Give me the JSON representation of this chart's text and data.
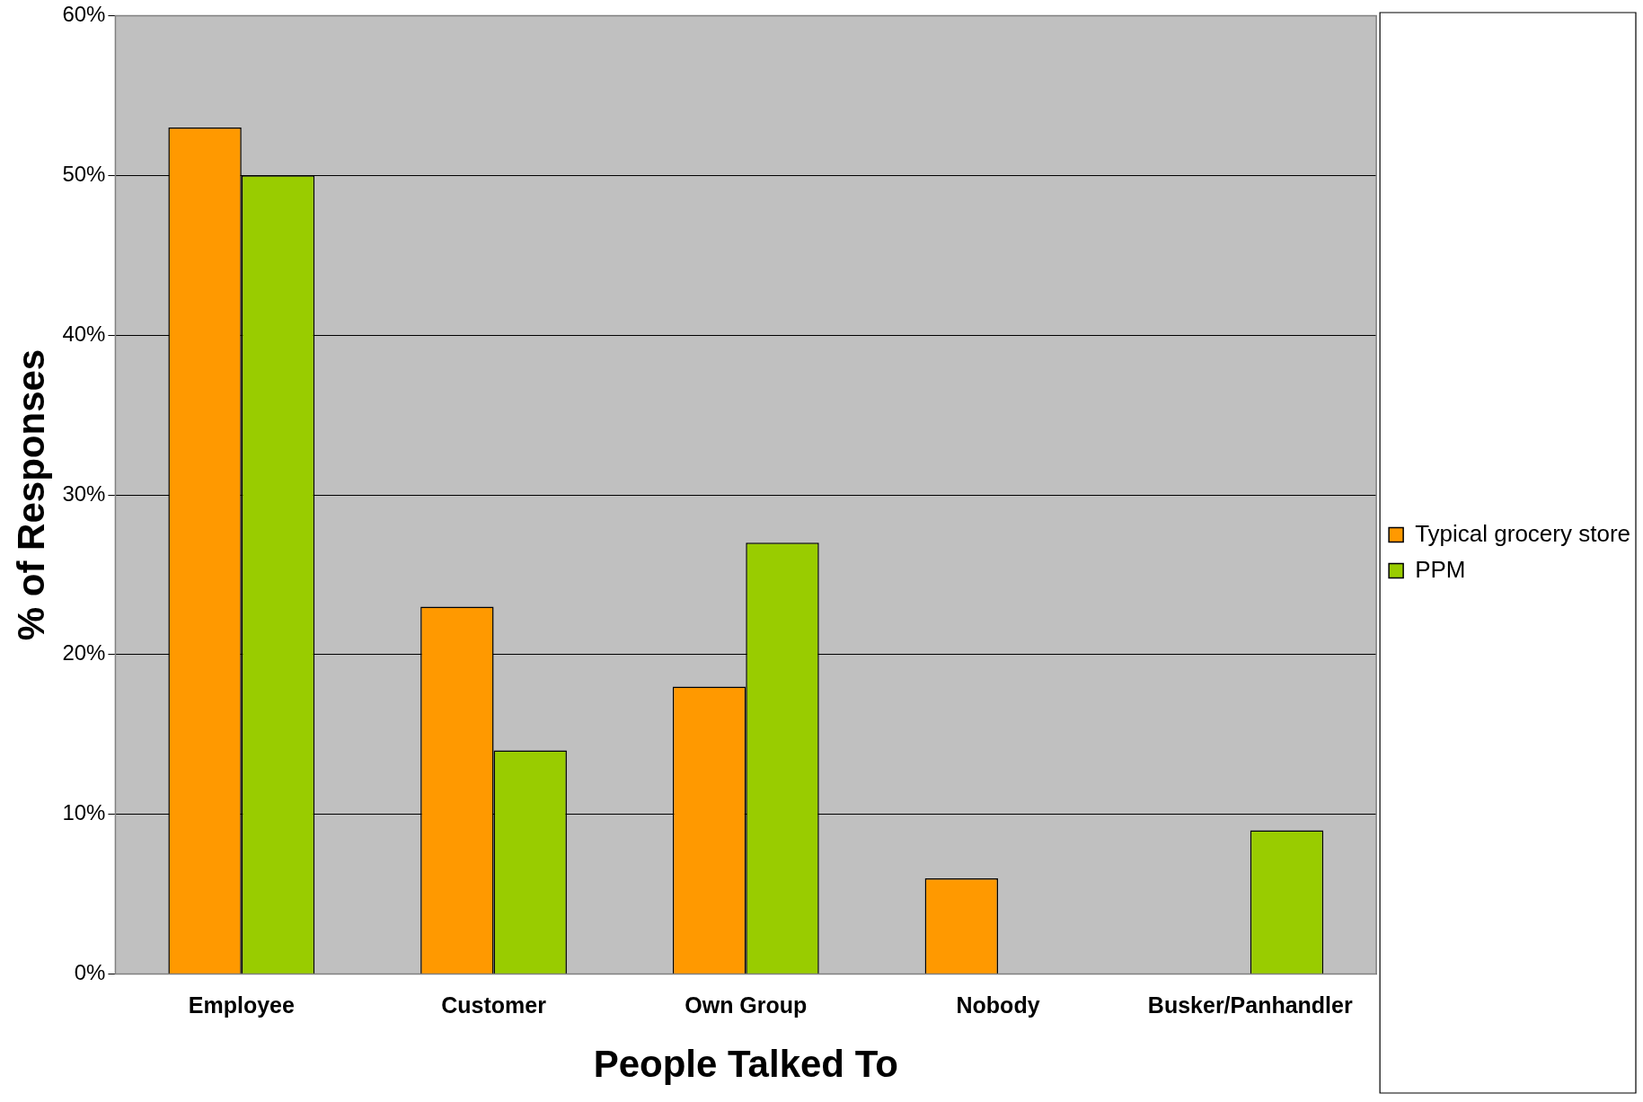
{
  "chart_data": {
    "type": "bar",
    "xlabel": "People Talked To",
    "ylabel": "% of Responses",
    "categories": [
      "Employee",
      "Customer",
      "Own Group",
      "Nobody",
      "Busker/Panhandler"
    ],
    "series": [
      {
        "name": "Typical grocery store",
        "color": "#ff9900",
        "values": [
          53,
          23,
          18,
          6,
          null
        ]
      },
      {
        "name": "PPM",
        "color": "#99cc00",
        "values": [
          50,
          14,
          27,
          null,
          9
        ]
      }
    ],
    "ylim": [
      0,
      60
    ],
    "yticks": [
      {
        "value": 0,
        "label": "0%"
      },
      {
        "value": 10,
        "label": "10%"
      },
      {
        "value": 20,
        "label": "20%"
      },
      {
        "value": 30,
        "label": "30%"
      },
      {
        "value": 40,
        "label": "40%"
      },
      {
        "value": 50,
        "label": "50%"
      },
      {
        "value": 60,
        "label": "60%"
      }
    ],
    "grid": "y",
    "legend": "right"
  }
}
